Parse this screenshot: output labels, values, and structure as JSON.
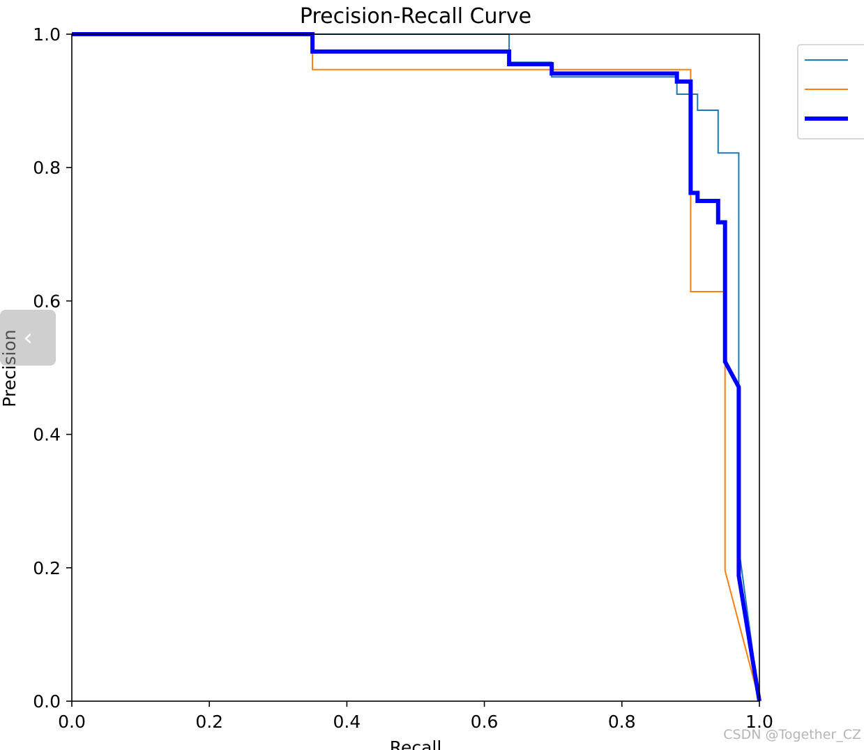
{
  "chart_data": {
    "type": "line",
    "title": "Precision-Recall Curve",
    "xlabel": "Recall",
    "ylabel": "Precision",
    "xlim": [
      0,
      1
    ],
    "ylim": [
      0,
      1
    ],
    "xticks": [
      "0.0",
      "0.2",
      "0.4",
      "0.6",
      "0.8",
      "1.0"
    ],
    "yticks": [
      "0.0",
      "0.2",
      "0.4",
      "0.6",
      "0.8",
      "1.0"
    ],
    "grid": false,
    "legend_position": "outside-top-right",
    "series": [
      {
        "color": "#1f77b4",
        "line_width": "thin",
        "points": [
          [
            0.0,
            1.0
          ],
          [
            0.636,
            1.0
          ],
          [
            0.636,
            0.958
          ],
          [
            0.698,
            0.958
          ],
          [
            0.698,
            0.936
          ],
          [
            0.88,
            0.936
          ],
          [
            0.88,
            0.91
          ],
          [
            0.91,
            0.91
          ],
          [
            0.91,
            0.886
          ],
          [
            0.94,
            0.886
          ],
          [
            0.94,
            0.822
          ],
          [
            0.97,
            0.822
          ],
          [
            0.97,
            0.23
          ],
          [
            1.0,
            0.0
          ]
        ]
      },
      {
        "color": "#ff7f0e",
        "line_width": "thin",
        "points": [
          [
            0.0,
            1.0
          ],
          [
            0.35,
            1.0
          ],
          [
            0.35,
            0.947
          ],
          [
            0.9,
            0.947
          ],
          [
            0.9,
            0.614
          ],
          [
            0.95,
            0.614
          ],
          [
            0.95,
            0.196
          ],
          [
            1.0,
            0.0
          ]
        ]
      },
      {
        "color": "#0000ff",
        "line_width": "thick",
        "points": [
          [
            0.0,
            1.0
          ],
          [
            0.35,
            1.0
          ],
          [
            0.35,
            0.974
          ],
          [
            0.636,
            0.974
          ],
          [
            0.636,
            0.955
          ],
          [
            0.698,
            0.955
          ],
          [
            0.698,
            0.941
          ],
          [
            0.88,
            0.941
          ],
          [
            0.88,
            0.929
          ],
          [
            0.9,
            0.929
          ],
          [
            0.9,
            0.762
          ],
          [
            0.91,
            0.762
          ],
          [
            0.91,
            0.75
          ],
          [
            0.94,
            0.75
          ],
          [
            0.94,
            0.718
          ],
          [
            0.95,
            0.718
          ],
          [
            0.95,
            0.509
          ],
          [
            0.97,
            0.471
          ],
          [
            0.97,
            0.188
          ],
          [
            1.0,
            0.0
          ]
        ]
      }
    ]
  },
  "side_button": {
    "glyph": "‹"
  },
  "watermark": "CSDN @Together_CZ"
}
